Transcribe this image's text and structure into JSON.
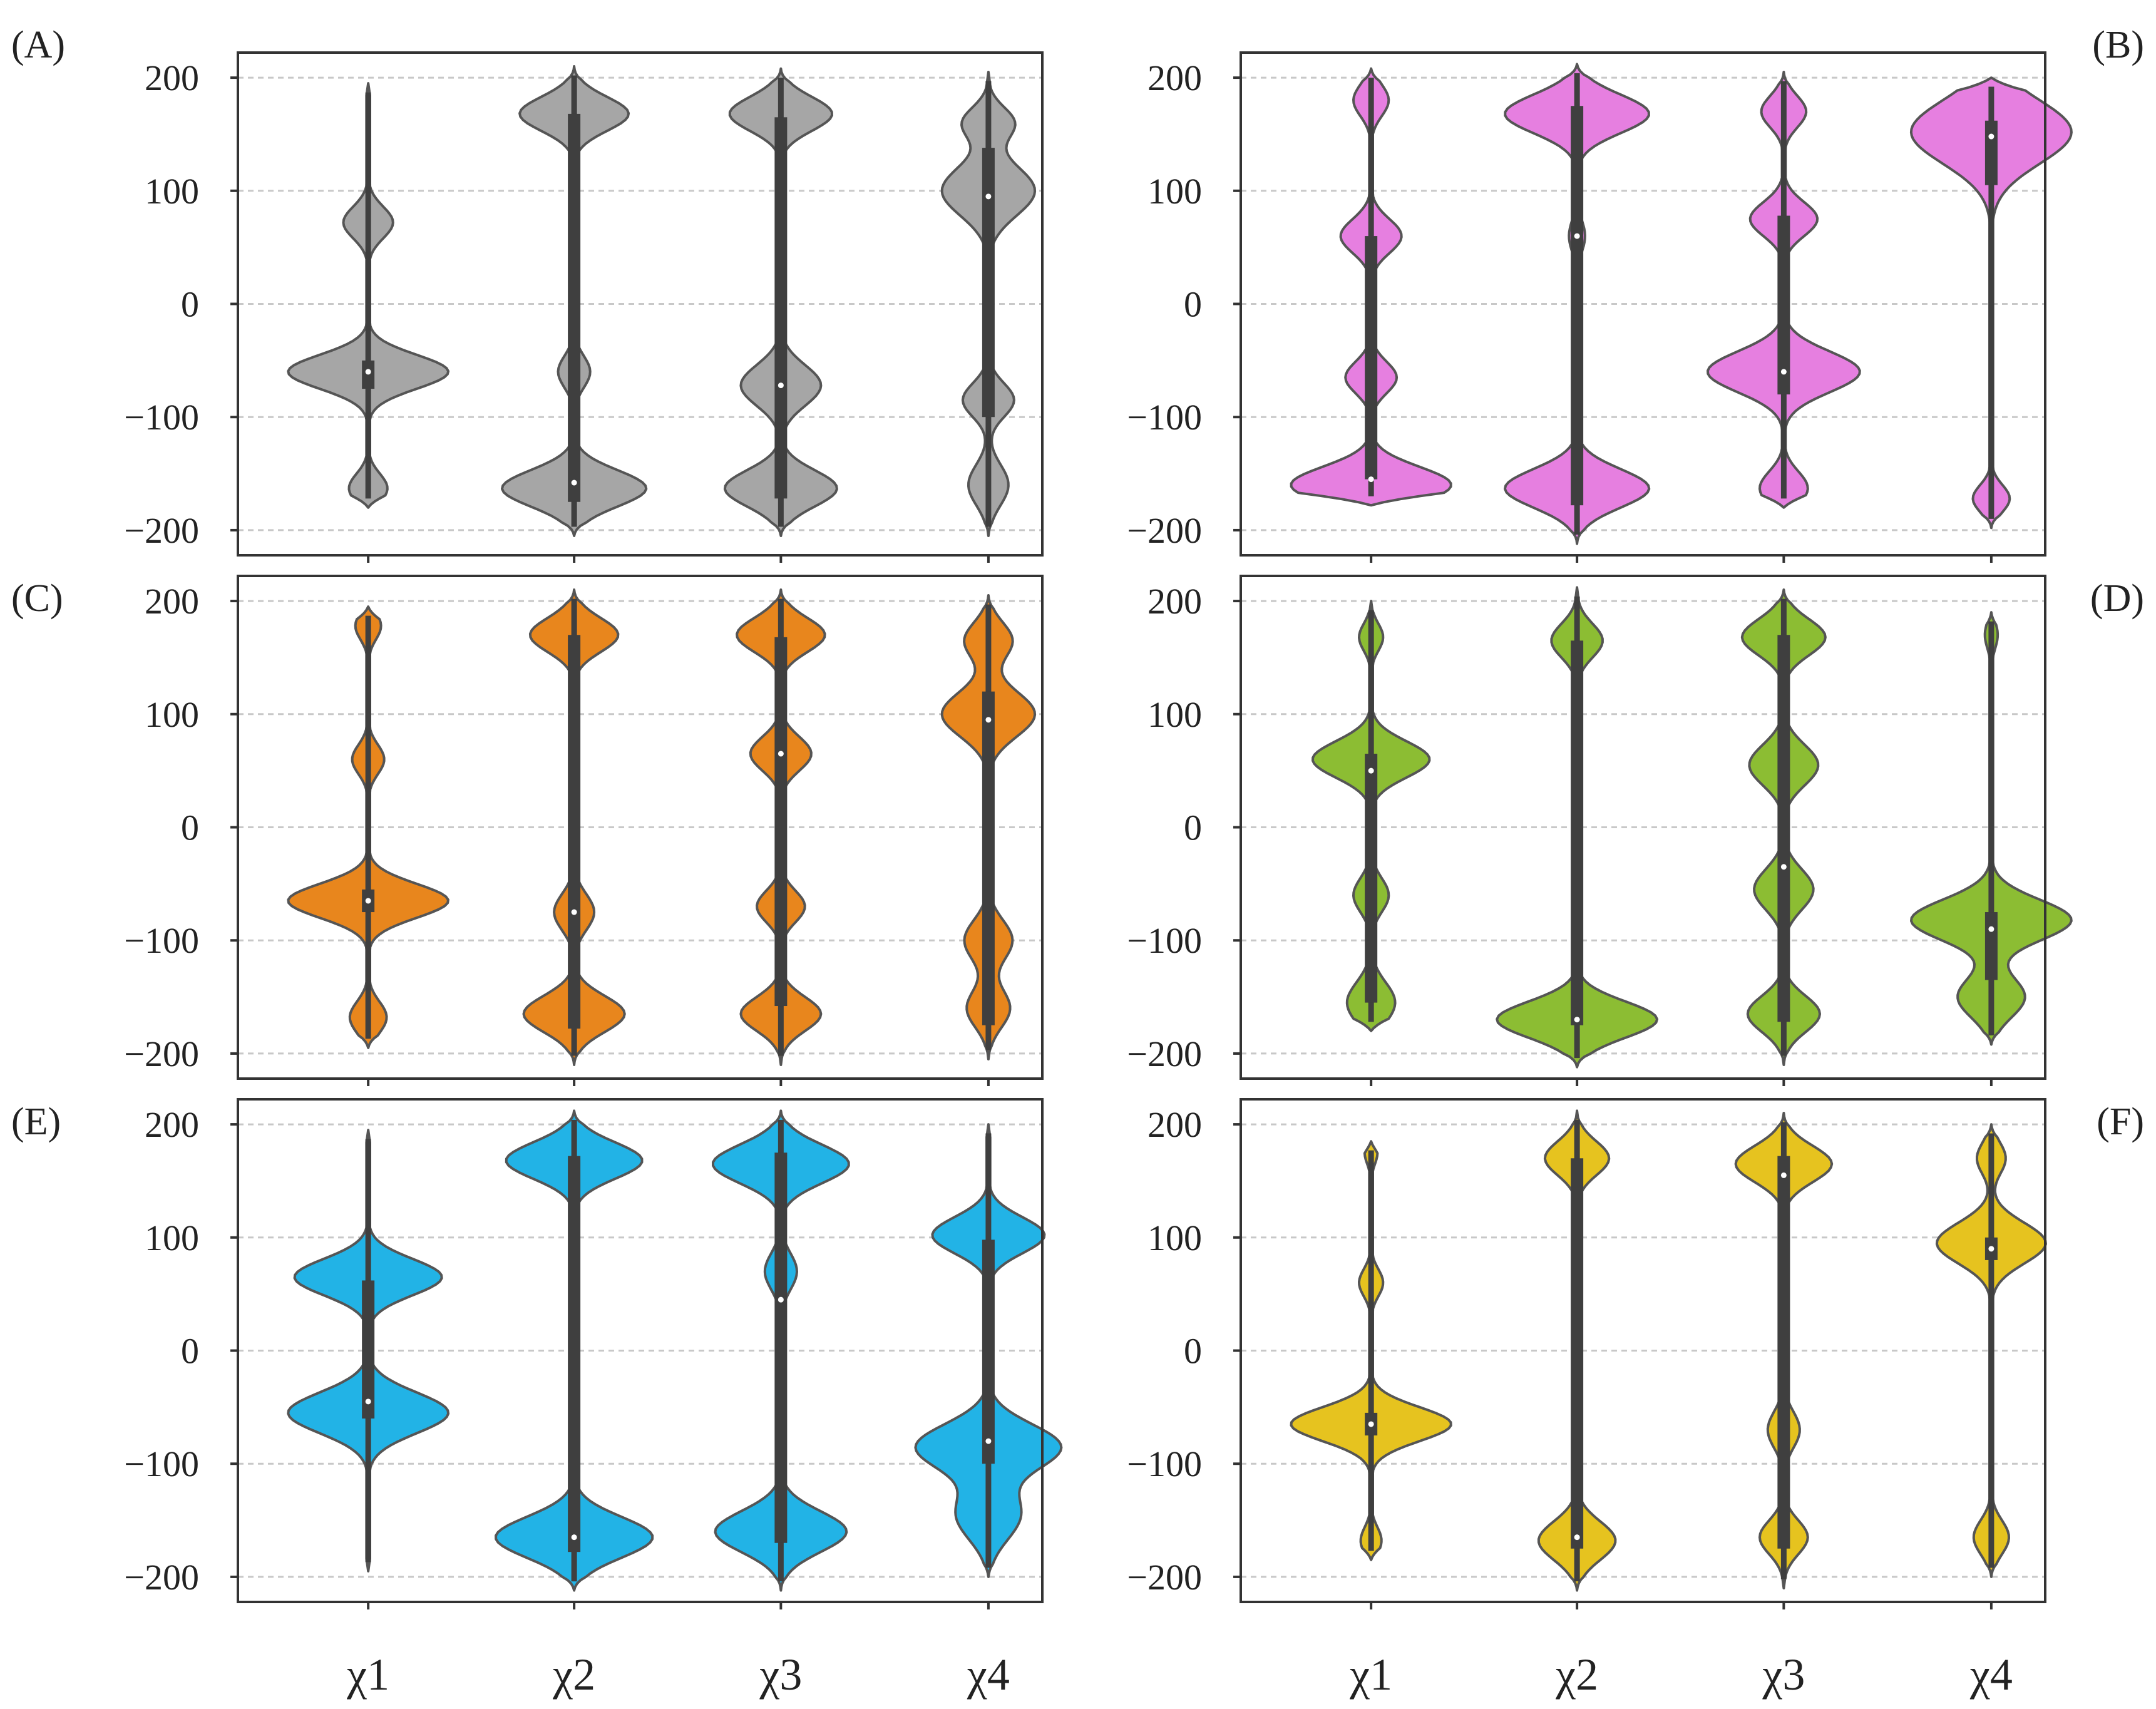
{
  "chart_data": {
    "type": "violin",
    "title": "",
    "xlabel": "",
    "ylabel": "",
    "ylim": [
      -210,
      210
    ],
    "categories": [
      "χ1",
      "χ2",
      "χ3",
      "χ4"
    ],
    "yticks": [
      200,
      100,
      0,
      -100,
      -200
    ],
    "ytick_labels": [
      "200",
      "100",
      "0",
      "−100",
      "−200"
    ],
    "grid": true,
    "panels": [
      {
        "label": "(A)",
        "color": "#a6a6a6",
        "violins": [
          {
            "min": -180,
            "max": 195,
            "q1": -75,
            "median": -60,
            "q3": -50,
            "modes": [
              [
                72,
                0.31,
                14
              ],
              [
                -60,
                1,
                15
              ],
              [
                -163,
                0.24,
                13
              ]
            ]
          },
          {
            "min": -205,
            "max": 210,
            "q1": -175,
            "median": -158,
            "q3": 168,
            "modes": [
              [
                168,
                0.68,
                15
              ],
              [
                -60,
                0.2,
                14
              ],
              [
                -163,
                0.9,
                16
              ]
            ]
          },
          {
            "min": -205,
            "max": 208,
            "q1": -172,
            "median": -72,
            "q3": 165,
            "modes": [
              [
                168,
                0.64,
                15
              ],
              [
                -72,
                0.5,
                18
              ],
              [
                -163,
                0.7,
                16
              ]
            ]
          },
          {
            "min": -205,
            "max": 205,
            "q1": -100,
            "median": 95,
            "q3": 138,
            "modes": [
              [
                160,
                0.32,
                14
              ],
              [
                100,
                0.58,
                22
              ],
              [
                -85,
                0.32,
                15
              ],
              [
                -160,
                0.25,
                18
              ]
            ]
          }
        ]
      },
      {
        "label": "(B)",
        "color": "#e67fe0",
        "violins": [
          {
            "min": -178,
            "max": 208,
            "q1": -155,
            "median": -155,
            "q3": 60,
            "modes": [
              [
                180,
                0.22,
                14
              ],
              [
                60,
                0.38,
                15
              ],
              [
                -65,
                0.32,
                14
              ],
              [
                -160,
                1,
                16
              ]
            ]
          },
          {
            "min": -212,
            "max": 212,
            "q1": -178,
            "median": 60,
            "q3": 175,
            "modes": [
              [
                168,
                0.9,
                17
              ],
              [
                60,
                0.1,
                14
              ],
              [
                -163,
                0.9,
                17
              ]
            ]
          },
          {
            "min": -180,
            "max": 205,
            "q1": -80,
            "median": -60,
            "q3": 78,
            "modes": [
              [
                170,
                0.28,
                14
              ],
              [
                75,
                0.42,
                15
              ],
              [
                -60,
                0.95,
                18
              ],
              [
                -163,
                0.3,
                15
              ]
            ]
          },
          {
            "min": -198,
            "max": 200,
            "q1": 105,
            "median": 148,
            "q3": 162,
            "modes": [
              [
                152,
                1,
                28
              ],
              [
                -172,
                0.23,
                12
              ]
            ]
          }
        ]
      },
      {
        "label": "(C)",
        "color": "#e8861d",
        "violins": [
          {
            "min": -195,
            "max": 195,
            "q1": -75,
            "median": -65,
            "q3": -55,
            "modes": [
              [
                178,
                0.16,
                12
              ],
              [
                60,
                0.2,
                13
              ],
              [
                -65,
                1,
                15
              ],
              [
                -168,
                0.23,
                14
              ]
            ]
          },
          {
            "min": -210,
            "max": 210,
            "q1": -178,
            "median": -75,
            "q3": 170,
            "modes": [
              [
                170,
                0.55,
                15
              ],
              [
                -75,
                0.25,
                16
              ],
              [
                -165,
                0.63,
                16
              ]
            ]
          },
          {
            "min": -210,
            "max": 210,
            "q1": -158,
            "median": 65,
            "q3": 168,
            "modes": [
              [
                170,
                0.55,
                15
              ],
              [
                65,
                0.38,
                15
              ],
              [
                -70,
                0.3,
                14
              ],
              [
                -165,
                0.5,
                15
              ]
            ]
          },
          {
            "min": -205,
            "max": 205,
            "q1": -175,
            "median": 95,
            "q3": 120,
            "modes": [
              [
                165,
                0.3,
                16
              ],
              [
                100,
                0.58,
                20
              ],
              [
                -100,
                0.3,
                18
              ],
              [
                -160,
                0.27,
                17
              ]
            ]
          }
        ]
      },
      {
        "label": "(D)",
        "color": "#8cbd33",
        "violins": [
          {
            "min": -180,
            "max": 200,
            "q1": -155,
            "median": 50,
            "q3": 65,
            "modes": [
              [
                168,
                0.15,
                12
              ],
              [
                60,
                0.73,
                16
              ],
              [
                -60,
                0.22,
                15
              ],
              [
                -155,
                0.3,
                18
              ]
            ]
          },
          {
            "min": -212,
            "max": 212,
            "q1": -175,
            "median": -170,
            "q3": 165,
            "modes": [
              [
                165,
                0.32,
                15
              ],
              [
                -170,
                1,
                16
              ]
            ]
          },
          {
            "min": -210,
            "max": 210,
            "q1": -172,
            "median": -35,
            "q3": 170,
            "modes": [
              [
                168,
                0.52,
                16
              ],
              [
                55,
                0.43,
                18
              ],
              [
                -55,
                0.37,
                18
              ],
              [
                -165,
                0.45,
                16
              ]
            ]
          },
          {
            "min": -192,
            "max": 190,
            "q1": -135,
            "median": -90,
            "q3": -75,
            "modes": [
              [
                170,
                0.08,
                12
              ],
              [
                -82,
                1,
                18
              ],
              [
                -150,
                0.42,
                18
              ]
            ]
          }
        ]
      },
      {
        "label": "(E)",
        "color": "#22b3e6",
        "violins": [
          {
            "min": -195,
            "max": 195,
            "q1": -60,
            "median": -45,
            "q3": 62,
            "modes": [
              [
                65,
                0.92,
                16
              ],
              [
                -55,
                1,
                18
              ]
            ]
          },
          {
            "min": -212,
            "max": 212,
            "q1": -178,
            "median": -165,
            "q3": 172,
            "modes": [
              [
                168,
                0.85,
                16
              ],
              [
                -165,
                0.98,
                18
              ]
            ]
          },
          {
            "min": -212,
            "max": 212,
            "q1": -170,
            "median": 45,
            "q3": 175,
            "modes": [
              [
                165,
                0.85,
                17
              ],
              [
                70,
                0.2,
                16
              ],
              [
                -160,
                0.82,
                18
              ]
            ]
          },
          {
            "min": -200,
            "max": 200,
            "q1": -100,
            "median": -80,
            "q3": 98,
            "modes": [
              [
                102,
                0.7,
                16
              ],
              [
                -85,
                0.9,
                20
              ],
              [
                -145,
                0.4,
                22
              ]
            ]
          }
        ]
      },
      {
        "label": "(F)",
        "color": "#e6c31f",
        "violins": [
          {
            "min": -185,
            "max": 185,
            "q1": -75,
            "median": -65,
            "q3": -55,
            "modes": [
              [
                175,
                0.08,
                10
              ],
              [
                60,
                0.15,
                12
              ],
              [
                -65,
                1,
                15
              ],
              [
                -168,
                0.13,
                12
              ]
            ]
          },
          {
            "min": -212,
            "max": 212,
            "q1": -175,
            "median": -165,
            "q3": 170,
            "modes": [
              [
                170,
                0.4,
                15
              ],
              [
                -168,
                0.48,
                17
              ]
            ]
          },
          {
            "min": -210,
            "max": 210,
            "q1": -175,
            "median": 155,
            "q3": 172,
            "modes": [
              [
                165,
                0.6,
                16
              ],
              [
                -70,
                0.2,
                16
              ],
              [
                -165,
                0.3,
                15
              ]
            ]
          },
          {
            "min": -200,
            "max": 200,
            "q1": 80,
            "median": 90,
            "q3": 100,
            "modes": [
              [
                170,
                0.18,
                14
              ],
              [
                95,
                0.68,
                18
              ],
              [
                -165,
                0.22,
                15
              ]
            ]
          }
        ]
      }
    ]
  }
}
